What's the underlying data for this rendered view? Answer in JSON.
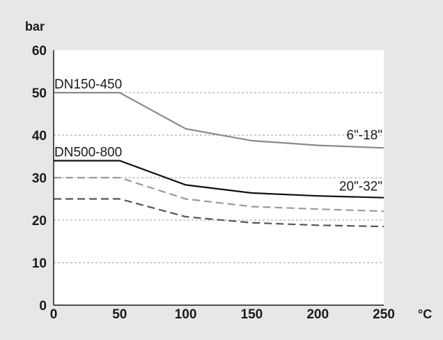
{
  "chart_data": {
    "type": "line",
    "y_unit": "bar",
    "x_unit": "°C",
    "xlim": [
      0,
      250
    ],
    "ylim": [
      0,
      60
    ],
    "x_ticks": [
      "0",
      "50",
      "100",
      "150",
      "200",
      "250"
    ],
    "y_ticks": [
      "0",
      "10",
      "20",
      "30",
      "40",
      "50",
      "60"
    ],
    "grid": "horizontal dashed",
    "series": [
      {
        "color": "#8a8a8a",
        "style": "solid",
        "x": [
          0,
          50,
          100,
          150,
          200,
          250
        ],
        "y": [
          50,
          50,
          41.5,
          38.7,
          37.6,
          37
        ]
      },
      {
        "color": "#111111",
        "style": "solid",
        "x": [
          0,
          50,
          100,
          150,
          200,
          250
        ],
        "y": [
          34,
          34,
          28.3,
          26.4,
          25.7,
          25.3
        ]
      },
      {
        "color": "#9a9a9a",
        "style": "dashed",
        "x": [
          0,
          50,
          100,
          150,
          200,
          250
        ],
        "y": [
          30,
          30,
          25,
          23.2,
          22.6,
          22.1
        ]
      },
      {
        "color": "#555555",
        "style": "dashed",
        "x": [
          0,
          50,
          100,
          150,
          200,
          250
        ],
        "y": [
          25,
          25,
          20.8,
          19.4,
          18.8,
          18.5
        ]
      }
    ],
    "annotations": [
      {
        "text": "DN150-450",
        "x": 0,
        "y": 50,
        "anchor": "start"
      },
      {
        "text": "6\"-18\"",
        "x": 250,
        "y": 38,
        "anchor": "end"
      },
      {
        "text": "DN500-800",
        "x": 0,
        "y": 34,
        "anchor": "start"
      },
      {
        "text": "20\"-32\"",
        "x": 250,
        "y": 26,
        "anchor": "end"
      }
    ]
  }
}
